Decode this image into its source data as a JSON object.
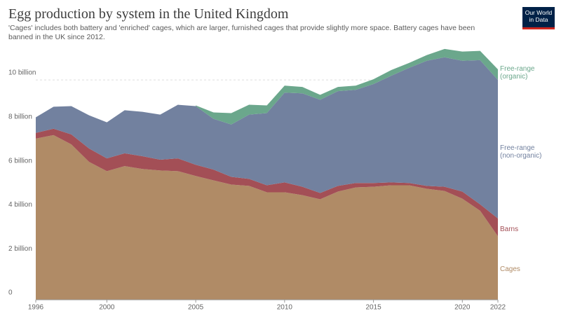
{
  "chart_data": {
    "type": "stacked_area",
    "title": "Egg production by system in the United Kingdom",
    "subtitle": "'Cages' includes both battery and 'enriched' cages, which are larger, furnished cages that provide slightly more space. Battery cages have been banned in the UK since 2012.",
    "logo": [
      "Our World",
      "in Data"
    ],
    "x": [
      1996,
      1997,
      1998,
      1999,
      2000,
      2001,
      2002,
      2003,
      2004,
      2005,
      2006,
      2007,
      2008,
      2009,
      2010,
      2011,
      2012,
      2013,
      2014,
      2015,
      2016,
      2017,
      2018,
      2019,
      2020,
      2021,
      2022
    ],
    "xlim": [
      1996,
      2022
    ],
    "xticks": [
      1996,
      2000,
      2005,
      2010,
      2015,
      2020,
      2022
    ],
    "ylim": [
      0,
      11.5
    ],
    "yticks": [
      0,
      {
        "value": 2,
        "label": "2 billion"
      },
      {
        "value": 4,
        "label": "4 billion"
      },
      {
        "value": 6,
        "label": "6 billion"
      },
      {
        "value": 8,
        "label": "8 billion"
      },
      {
        "value": 10,
        "label": "10 billion"
      }
    ],
    "grid": true,
    "series": [
      {
        "name": "Cages",
        "color": "#b08b66",
        "values": [
          7.33,
          7.49,
          7.07,
          6.27,
          5.85,
          6.08,
          5.95,
          5.88,
          5.85,
          5.63,
          5.43,
          5.24,
          5.18,
          4.89,
          4.89,
          4.76,
          4.57,
          4.92,
          5.11,
          5.14,
          5.21,
          5.21,
          5.05,
          4.95,
          4.6,
          4.05,
          2.89
        ]
      },
      {
        "name": "Barns",
        "color": "#a34f56",
        "values": [
          0.26,
          0.29,
          0.45,
          0.61,
          0.58,
          0.58,
          0.58,
          0.49,
          0.58,
          0.51,
          0.49,
          0.35,
          0.32,
          0.32,
          0.45,
          0.38,
          0.29,
          0.26,
          0.2,
          0.17,
          0.13,
          0.1,
          0.13,
          0.19,
          0.32,
          0.29,
          0.81
        ]
      },
      {
        "name": "Free-range (non-organic)",
        "color": "#72819f",
        "values": [
          0.71,
          1.0,
          1.29,
          1.51,
          1.64,
          1.96,
          2.02,
          2.05,
          2.44,
          2.67,
          2.31,
          2.38,
          2.92,
          3.28,
          4.08,
          4.25,
          4.24,
          4.31,
          4.24,
          4.5,
          4.85,
          5.24,
          5.69,
          5.89,
          5.95,
          6.56,
          6.3
        ]
      },
      {
        "name": "Free-range (organic)",
        "color": "#6ba78c",
        "values": [
          null,
          null,
          null,
          null,
          null,
          null,
          null,
          null,
          null,
          0.03,
          0.29,
          0.52,
          0.45,
          0.35,
          0.32,
          0.29,
          0.22,
          0.19,
          0.19,
          0.22,
          0.26,
          0.22,
          0.26,
          0.38,
          0.42,
          0.42,
          0.48
        ]
      }
    ]
  }
}
